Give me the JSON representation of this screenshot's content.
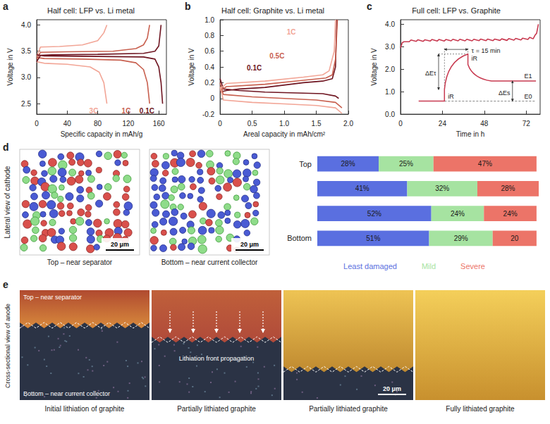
{
  "chart_data": [
    {
      "panel": "a",
      "type": "line",
      "title": "Half cell: LFP vs. Li metal",
      "x_label": "Specific capacity in mAh/g",
      "y_label": "Voltage in V",
      "xlim": [
        0,
        170
      ],
      "ylim": [
        2.3,
        4.1
      ],
      "xticks": [
        0,
        40,
        80,
        120,
        160
      ],
      "yticks": [
        2.5,
        {
          "value": 3,
          "label": "3.0"
        },
        3.5,
        {
          "value": 4,
          "label": "4.0"
        }
      ],
      "grid": false,
      "series": [
        {
          "name": "3C",
          "color": "#f2a596",
          "x": [
            0,
            5,
            30,
            60,
            80,
            88,
            92,
            null,
            0,
            10,
            40,
            70,
            82,
            88,
            92
          ],
          "values": [
            3.4,
            3.58,
            3.59,
            3.62,
            3.7,
            3.85,
            4.0,
            null,
            3.3,
            3.27,
            3.25,
            3.2,
            3.1,
            2.9,
            2.5
          ]
        },
        {
          "name": "1C",
          "color": "#c8604f",
          "x": [
            0,
            5,
            40,
            100,
            130,
            140,
            145,
            148,
            null,
            0,
            10,
            60,
            110,
            130,
            140,
            145,
            148
          ],
          "values": [
            3.35,
            3.48,
            3.49,
            3.5,
            3.55,
            3.62,
            3.75,
            4.0,
            null,
            3.38,
            3.36,
            3.35,
            3.33,
            3.28,
            3.15,
            2.9,
            2.5
          ]
        },
        {
          "name": "0.1C",
          "color": "#6e1420",
          "x": [
            0,
            5,
            20,
            80,
            140,
            155,
            160,
            163,
            null,
            0,
            10,
            80,
            140,
            155,
            160,
            163,
            165
          ],
          "values": [
            3.3,
            3.42,
            3.43,
            3.44,
            3.46,
            3.5,
            3.6,
            4.0,
            null,
            3.43,
            3.41,
            3.4,
            3.39,
            3.35,
            3.2,
            2.9,
            2.5
          ]
        }
      ]
    },
    {
      "panel": "b",
      "type": "line",
      "title": "Half cell: Graphite vs. Li metal",
      "x_label": "Areal capacity in mAh/cm²",
      "y_label": "Voltage in V",
      "xlim": [
        0,
        2
      ],
      "ylim": [
        -0.2,
        1
      ],
      "xticks": [
        0,
        0.5,
        {
          "value": 1,
          "label": "1.0"
        },
        1.5,
        {
          "value": 2,
          "label": "2.0"
        }
      ],
      "yticks": [
        -0.2,
        0,
        0.2,
        0.4,
        0.6,
        0.8,
        {
          "value": 1,
          "label": "1.0"
        }
      ],
      "grid": false,
      "series": [
        {
          "name": "0.1C",
          "color": "#6e1420",
          "x": [
            0,
            0.05,
            0.3,
            0.7,
            1.2,
            1.6,
            1.8,
            1.85,
            null,
            0,
            0.1,
            0.3,
            0.7,
            1.3,
            1.6,
            1.75,
            1.8,
            1.82
          ],
          "values": [
            0.25,
            0.12,
            0.1,
            0.08,
            0.07,
            0.06,
            0.03,
            0.0,
            null,
            0.08,
            0.1,
            0.12,
            0.14,
            0.2,
            0.22,
            0.25,
            0.4,
            1.0
          ]
        },
        {
          "name": "0.5C",
          "color": "#c8604f",
          "x": [
            0,
            0.05,
            0.5,
            1.0,
            1.5,
            1.8,
            1.9,
            null,
            0,
            0.1,
            0.7,
            1.3,
            1.65,
            1.75,
            1.8,
            1.83
          ],
          "values": [
            0.2,
            0.05,
            0.02,
            0.0,
            -0.02,
            -0.05,
            -0.12,
            null,
            0.1,
            0.15,
            0.18,
            0.23,
            0.26,
            0.3,
            0.5,
            1.0
          ]
        },
        {
          "name": "1C",
          "color": "#f2a596",
          "x": [
            0,
            0.05,
            0.5,
            1.0,
            1.5,
            1.8,
            1.9,
            null,
            0,
            0.1,
            0.7,
            1.3,
            1.6,
            1.7,
            1.78,
            1.8
          ],
          "values": [
            0.15,
            -0.02,
            -0.05,
            -0.07,
            -0.09,
            -0.12,
            -0.19,
            null,
            0.12,
            0.19,
            0.22,
            0.27,
            0.3,
            0.35,
            0.6,
            1.0
          ]
        }
      ]
    },
    {
      "panel": "c",
      "type": "line",
      "title": "Full cell: LFP vs. Graphite",
      "x_label": "Time in h",
      "y_label": "Voltage in V",
      "xlim": [
        0,
        80
      ],
      "ylim": [
        0,
        4.2
      ],
      "xticks": [
        0,
        24,
        48,
        72
      ],
      "yticks": [
        {
          "value": 0,
          "label": "0.0"
        },
        {
          "value": 1,
          "label": "1.0"
        },
        {
          "value": 2,
          "label": "2.0"
        },
        {
          "value": 3,
          "label": "3.0"
        },
        {
          "value": 4,
          "label": "4.0"
        }
      ],
      "grid": false,
      "color": "#c83a50",
      "x": [
        0,
        1,
        2,
        5,
        6,
        9,
        10,
        13,
        14,
        17,
        18,
        21,
        22,
        25,
        26,
        29,
        30,
        33,
        34,
        37,
        38,
        41,
        42,
        45,
        46,
        49,
        50,
        53,
        54,
        57,
        58,
        61,
        62,
        65,
        66,
        69,
        70,
        73,
        74,
        76,
        77,
        78,
        79
      ],
      "values": [
        2.95,
        3.18,
        3.22,
        3.22,
        3.3,
        3.24,
        3.31,
        3.24,
        3.31,
        3.25,
        3.32,
        3.25,
        3.32,
        3.25,
        3.32,
        3.26,
        3.33,
        3.26,
        3.33,
        3.26,
        3.33,
        3.26,
        3.33,
        3.27,
        3.34,
        3.27,
        3.34,
        3.27,
        3.34,
        3.28,
        3.35,
        3.28,
        3.36,
        3.29,
        3.37,
        3.3,
        3.38,
        3.32,
        3.42,
        3.35,
        3.5,
        3.6,
        4.0
      ],
      "inset": {
        "tau": "τ = 15 min",
        "delta_e_tau": "ΔEτ",
        "delta_e_s": "ΔEs",
        "ir": "iR",
        "e1": "E1",
        "e0": "E0"
      }
    },
    {
      "panel": "d",
      "type": "bar",
      "orientation": "horizontal",
      "stacked": true,
      "categories": [
        "Top",
        null,
        null,
        "Bottom"
      ],
      "xlim": [
        0,
        101
      ],
      "tick_labels": "y",
      "data_labels": true,
      "legend": "bottom",
      "series": [
        {
          "name": "Least damaged",
          "color": "#5a6fe0",
          "values": [
            28,
            41,
            52,
            51
          ],
          "value_labels": [
            "28%",
            "41%",
            "52%",
            "51%"
          ]
        },
        {
          "name": "Mild",
          "color": "#a6e3a1",
          "values": [
            25,
            32,
            24,
            29
          ],
          "value_labels": [
            "25%",
            "32%",
            "24%",
            "29%"
          ]
        },
        {
          "name": "Severe",
          "color": "#ec7468",
          "values": [
            47,
            28,
            24,
            20
          ],
          "value_labels": [
            "47%",
            "28%",
            "24%",
            "20"
          ]
        }
      ]
    }
  ],
  "figure": {
    "d": {
      "side_label": "Lateral view of cathode",
      "images": [
        {
          "caption": "Top – near separator",
          "scale_bar": "20 μm"
        },
        {
          "caption": "Bottom – near current collector",
          "scale_bar": "20 μm"
        }
      ]
    },
    "e": {
      "panel": "e",
      "side_label": "Cross-sectional view of anode",
      "top_label": "Top – near separator",
      "bottom_label": "Bottom – near current collector",
      "arrow_label": "Lithiation front propagation",
      "scale_bar": "20 μm",
      "captions": [
        "Initial lithiation of graphite",
        "Partially lithiated graphite",
        "Partially lithiated graphite",
        "Fully lithiated graphite"
      ]
    }
  }
}
